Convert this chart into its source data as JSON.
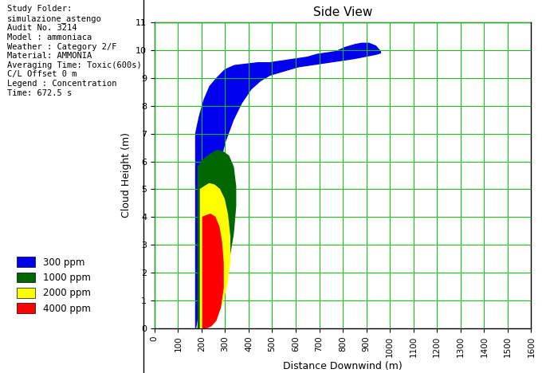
{
  "title": "Side View",
  "xlabel": "Distance Downwind (m)",
  "ylabel": "Cloud Height (m)",
  "xlim": [
    0,
    1600
  ],
  "ylim": [
    0,
    11
  ],
  "xticks": [
    0,
    100,
    200,
    300,
    400,
    500,
    600,
    700,
    800,
    900,
    1000,
    1100,
    1200,
    1300,
    1400,
    1500,
    1600
  ],
  "yticks": [
    0,
    1,
    2,
    3,
    4,
    5,
    6,
    7,
    8,
    9,
    10,
    11
  ],
  "grid_color": "#00cc00",
  "background_color": "#ffffff",
  "info_lines": [
    "Study Folder:",
    "simulazione_astengo",
    "Audit No. 3214",
    "Model : ammoniaca",
    "Weather : Category 2/F",
    "Material: AMMONIA",
    "Averaging Time: Toxic(600s)",
    "C/L Offset 0 m",
    "Legend : Concentration",
    "Time: 672.5 s"
  ],
  "legend_items": [
    {
      "label": "300 ppm",
      "color": "#0000ee"
    },
    {
      "label": "1000 ppm",
      "color": "#006600"
    },
    {
      "label": "2000 ppm",
      "color": "#ffff00"
    },
    {
      "label": "4000 ppm",
      "color": "#ff0000"
    }
  ],
  "blue_polygon_x": [
    175,
    175,
    190,
    210,
    235,
    265,
    300,
    340,
    390,
    440,
    490,
    530,
    570,
    610,
    650,
    690,
    730,
    770,
    810,
    850,
    880,
    910,
    940,
    960,
    960,
    940,
    910,
    880,
    850,
    810,
    770,
    730,
    690,
    650,
    610,
    570,
    530,
    490,
    450,
    410,
    370,
    335,
    300,
    270,
    245,
    220,
    200,
    185,
    175
  ],
  "blue_polygon_y": [
    0,
    7.0,
    7.6,
    8.2,
    8.7,
    9.0,
    9.3,
    9.45,
    9.5,
    9.55,
    9.55,
    9.6,
    9.65,
    9.7,
    9.75,
    9.85,
    9.9,
    9.95,
    10.1,
    10.2,
    10.25,
    10.25,
    10.15,
    9.95,
    9.9,
    9.85,
    9.8,
    9.75,
    9.7,
    9.65,
    9.6,
    9.55,
    9.5,
    9.45,
    9.4,
    9.3,
    9.2,
    9.1,
    8.9,
    8.6,
    8.1,
    7.5,
    6.7,
    5.7,
    4.5,
    3.2,
    1.8,
    0.5,
    0
  ],
  "green_polygon_x": [
    185,
    185,
    200,
    220,
    245,
    268,
    290,
    315,
    335,
    345,
    345,
    335,
    315,
    290,
    265,
    238,
    215,
    198,
    185
  ],
  "green_polygon_y": [
    0,
    5.8,
    6.0,
    6.15,
    6.3,
    6.4,
    6.35,
    6.2,
    5.8,
    5.1,
    4.4,
    3.4,
    2.4,
    1.5,
    0.75,
    0.28,
    0.08,
    0.01,
    0
  ],
  "yellow_polygon_x": [
    195,
    195,
    213,
    233,
    255,
    276,
    296,
    310,
    320,
    320,
    308,
    288,
    263,
    238,
    215,
    200,
    195
  ],
  "yellow_polygon_y": [
    0,
    5.0,
    5.1,
    5.2,
    5.15,
    5.0,
    4.65,
    4.1,
    3.3,
    2.4,
    1.6,
    0.9,
    0.4,
    0.15,
    0.03,
    0,
    0
  ],
  "red_polygon_x": [
    205,
    205,
    220,
    238,
    257,
    274,
    285,
    292,
    292,
    280,
    261,
    240,
    220,
    208,
    205
  ],
  "red_polygon_y": [
    0,
    4.0,
    4.05,
    4.1,
    4.0,
    3.65,
    3.1,
    2.35,
    1.45,
    0.75,
    0.28,
    0.08,
    0.01,
    0,
    0
  ],
  "blue_color": "#0000ee",
  "green_color": "#006600",
  "yellow_color": "#ffff00",
  "red_color": "#ff0000"
}
